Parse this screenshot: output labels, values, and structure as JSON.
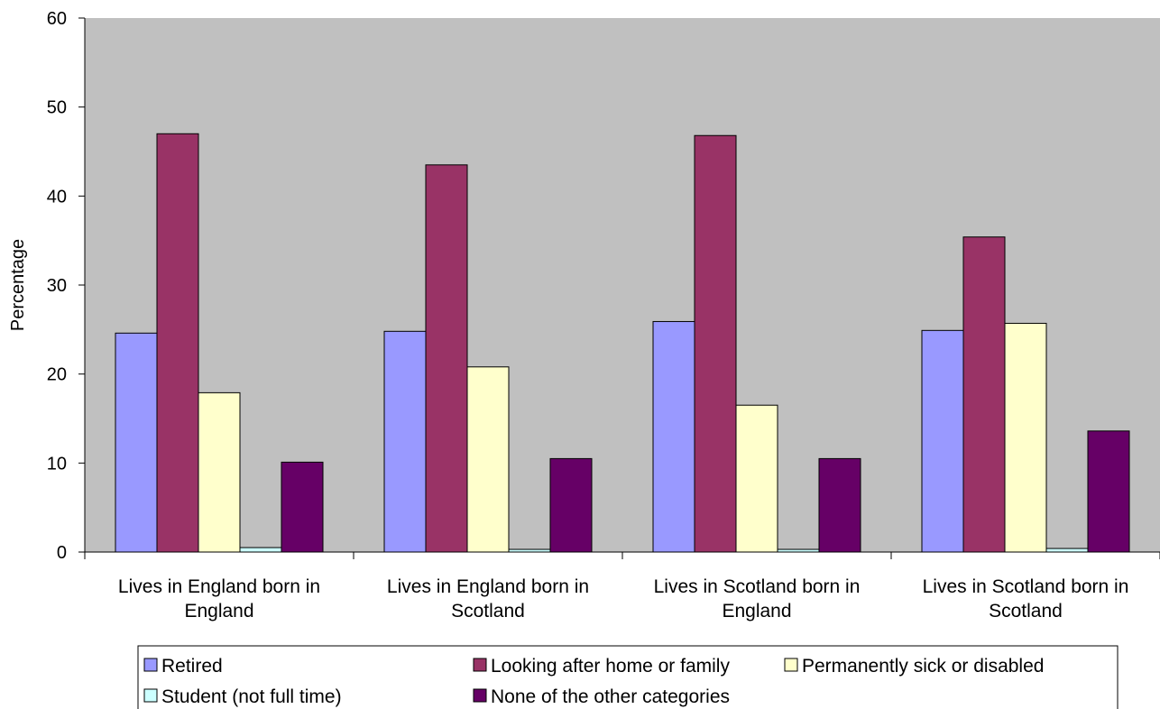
{
  "chart_data": {
    "type": "bar",
    "title": "",
    "xlabel": "",
    "ylabel": "Percentage",
    "ylim": [
      0,
      60
    ],
    "yticks": [
      0,
      10,
      20,
      30,
      40,
      50,
      60
    ],
    "grid": false,
    "plot_background": "#C0C0C0",
    "legend_position": "bottom",
    "categories": [
      [
        "Lives in England born in",
        "England"
      ],
      [
        "Lives in England born in",
        "Scotland"
      ],
      [
        "Lives in Scotland born in",
        "England"
      ],
      [
        "Lives in Scotland born in",
        "Scotland"
      ]
    ],
    "series": [
      {
        "name": "Retired",
        "color": "#9999FF",
        "values": [
          24.6,
          24.8,
          25.9,
          24.9
        ]
      },
      {
        "name": "Looking after home or family",
        "color": "#993366",
        "values": [
          47.0,
          43.5,
          46.8,
          35.4
        ]
      },
      {
        "name": "Permanently sick or disabled",
        "color": "#FFFFCC",
        "values": [
          17.9,
          20.8,
          16.5,
          25.7
        ]
      },
      {
        "name": "Student (not full time)",
        "color": "#CCFFFF",
        "values": [
          0.5,
          0.3,
          0.3,
          0.4
        ]
      },
      {
        "name": "None of the other categories",
        "color": "#660066",
        "values": [
          10.1,
          10.5,
          10.5,
          13.6
        ]
      }
    ]
  }
}
